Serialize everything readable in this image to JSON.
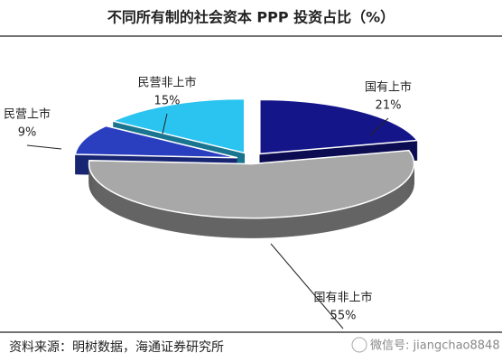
{
  "chart_data": {
    "type": "pie",
    "title": "不同所有制的社会资本 PPP 投资占比（%）",
    "categories": [
      "国有上市",
      "国有非上市",
      "民营上市",
      "民营非上市"
    ],
    "values": [
      21,
      55,
      9,
      15
    ],
    "value_labels": [
      "21%",
      "55%",
      "9%",
      "15%"
    ],
    "colors": [
      "#15158a",
      "#a8a8a8",
      "#2a3fc0",
      "#2bc4f0"
    ]
  },
  "source": "资料来源：明树数据，海通证券研究所",
  "watermark": "微信号: jiangchao8848"
}
